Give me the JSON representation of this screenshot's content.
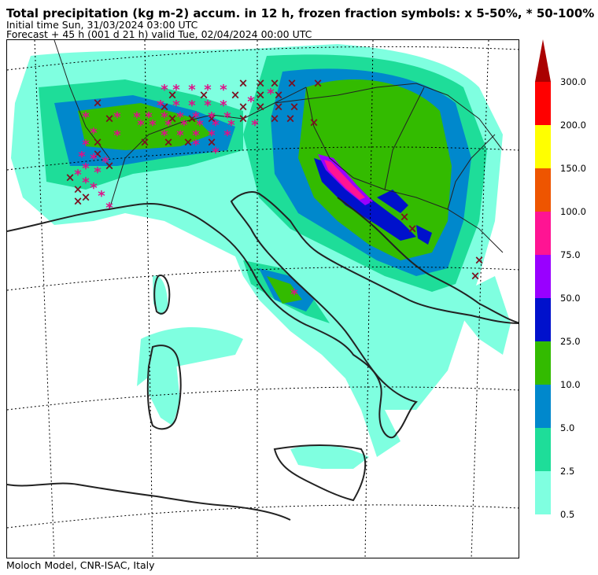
{
  "header": {
    "title": "Total precipitation (kg m-2) accum. in 12 h, frozen fraction symbols: x 5-50%, * 50-100%",
    "initial_time": "Initial time  Sun, 31/03/2024  03:00 UTC",
    "forecast": "Forecast  +  45 h  (001 d 21 h)  valid Tue, 02/04/2024 00:00 UTC"
  },
  "footer": {
    "credit": "Moloch Model, CNR-ISAC, Italy"
  },
  "legend": {
    "arrow_color": "#aa0000",
    "levels": [
      {
        "label": "300.0",
        "color": "#ff0000"
      },
      {
        "label": "200.0",
        "color": "#ffff00"
      },
      {
        "label": "150.0",
        "color": "#ee5500"
      },
      {
        "label": "100.0",
        "color": "#ff1493"
      },
      {
        "label": "75.0",
        "color": "#9900ff"
      },
      {
        "label": "50.0",
        "color": "#0011cc"
      },
      {
        "label": "25.0",
        "color": "#33bb00"
      },
      {
        "label": "10.0",
        "color": "#0088cc"
      },
      {
        "label": "5.0",
        "color": "#1edd99"
      },
      {
        "label": "2.5",
        "color": "#7fffe0"
      },
      {
        "label": "0.5",
        "color": ""
      }
    ]
  },
  "map": {
    "colors": {
      "light": "#7fffe0",
      "mint": "#1edd99",
      "blue": "#0088cc",
      "green": "#33bb00",
      "darkblue": "#0011cc",
      "purple": "#9900ff",
      "pink": "#ff1493",
      "coast": "#222222",
      "x_symbol": "#7a1020",
      "star_symbol": "#dd1188"
    },
    "symbols": {
      "x_glyph": "×",
      "star_glyph": "*"
    }
  }
}
